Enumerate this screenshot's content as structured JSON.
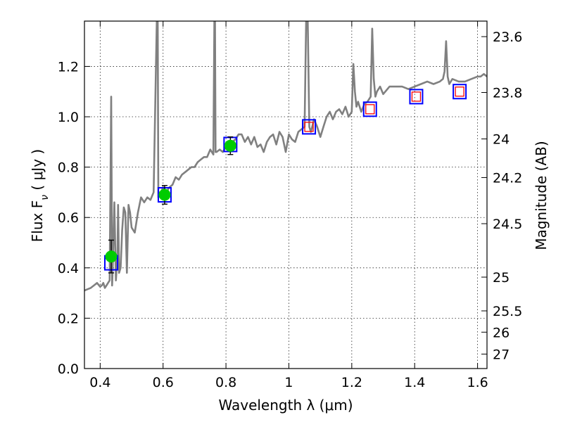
{
  "chart_data": {
    "type": "line",
    "xlabel": "Wavelength  λ (μm)",
    "ylabel": "Flux  F",
    "ylabel_sub": "ν",
    "ylabel_unit": " ( μJy )",
    "y2label": "Magnitude (AB)",
    "xlim": [
      0.35,
      1.63
    ],
    "ylim": [
      0.0,
      1.38
    ],
    "grid": true,
    "x_ticks": [
      {
        "value": 0.4,
        "label": "0.4"
      },
      {
        "value": 0.6,
        "label": "0.6"
      },
      {
        "value": 0.8,
        "label": "0.8"
      },
      {
        "value": 1.0,
        "label": "1"
      },
      {
        "value": 1.2,
        "label": "1.2"
      },
      {
        "value": 1.4,
        "label": "1.4"
      },
      {
        "value": 1.6,
        "label": "1.6"
      }
    ],
    "y_ticks": [
      {
        "value": 0.0,
        "label": "0.0"
      },
      {
        "value": 0.2,
        "label": "0.2"
      },
      {
        "value": 0.4,
        "label": "0.4"
      },
      {
        "value": 0.6,
        "label": "0.6"
      },
      {
        "value": 0.8,
        "label": "0.8"
      },
      {
        "value": 1.0,
        "label": "1.0"
      },
      {
        "value": 1.2,
        "label": "1.2"
      }
    ],
    "y2_ticks": [
      {
        "flux": 1.3183,
        "label": "23.6"
      },
      {
        "flux": 1.0965,
        "label": "23.8"
      },
      {
        "flux": 0.912,
        "label": "24"
      },
      {
        "flux": 0.7586,
        "label": "24.2"
      },
      {
        "flux": 0.5754,
        "label": "24.5"
      },
      {
        "flux": 0.3631,
        "label": "25"
      },
      {
        "flux": 0.2291,
        "label": "25.5"
      },
      {
        "flux": 0.1445,
        "label": "26"
      },
      {
        "flux": 0.0575,
        "label": "27"
      }
    ],
    "series": [
      {
        "kind": "model-spectrum",
        "color": "#808080",
        "x": [
          0.35,
          0.37,
          0.38,
          0.39,
          0.4,
          0.405,
          0.41,
          0.415,
          0.42,
          0.425,
          0.43,
          0.435,
          0.437,
          0.438,
          0.44,
          0.442,
          0.445,
          0.45,
          0.455,
          0.457,
          0.46,
          0.465,
          0.47,
          0.475,
          0.48,
          0.485,
          0.49,
          0.495,
          0.5,
          0.51,
          0.52,
          0.53,
          0.54,
          0.55,
          0.56,
          0.57,
          0.58,
          0.583,
          0.585,
          0.587,
          0.59,
          0.6,
          0.61,
          0.62,
          0.63,
          0.64,
          0.65,
          0.66,
          0.67,
          0.68,
          0.69,
          0.7,
          0.71,
          0.72,
          0.73,
          0.74,
          0.75,
          0.76,
          0.763,
          0.765,
          0.767,
          0.77,
          0.78,
          0.79,
          0.8,
          0.81,
          0.82,
          0.83,
          0.84,
          0.85,
          0.86,
          0.87,
          0.88,
          0.89,
          0.9,
          0.91,
          0.92,
          0.93,
          0.94,
          0.95,
          0.96,
          0.97,
          0.98,
          0.99,
          1.0,
          1.01,
          1.02,
          1.03,
          1.04,
          1.05,
          1.055,
          1.06,
          1.065,
          1.07,
          1.08,
          1.09,
          1.1,
          1.11,
          1.12,
          1.13,
          1.14,
          1.15,
          1.16,
          1.17,
          1.18,
          1.19,
          1.2,
          1.205,
          1.21,
          1.215,
          1.22,
          1.23,
          1.24,
          1.25,
          1.26,
          1.265,
          1.27,
          1.275,
          1.28,
          1.29,
          1.3,
          1.32,
          1.34,
          1.36,
          1.38,
          1.4,
          1.42,
          1.44,
          1.46,
          1.48,
          1.49,
          1.495,
          1.5,
          1.505,
          1.51,
          1.52,
          1.54,
          1.56,
          1.58,
          1.6,
          1.61,
          1.62,
          1.63
        ],
        "y": [
          0.31,
          0.32,
          0.33,
          0.34,
          0.325,
          0.33,
          0.34,
          0.32,
          0.33,
          0.34,
          0.35,
          1.08,
          0.6,
          0.33,
          0.4,
          0.5,
          0.66,
          0.35,
          0.45,
          0.65,
          0.38,
          0.4,
          0.55,
          0.64,
          0.62,
          0.38,
          0.65,
          0.62,
          0.56,
          0.54,
          0.62,
          0.68,
          0.66,
          0.68,
          0.67,
          0.7,
          1.38,
          1.38,
          0.68,
          0.7,
          0.69,
          0.72,
          0.7,
          0.72,
          0.73,
          0.76,
          0.75,
          0.77,
          0.78,
          0.79,
          0.8,
          0.8,
          0.82,
          0.83,
          0.84,
          0.84,
          0.87,
          0.85,
          1.38,
          1.38,
          0.86,
          0.86,
          0.87,
          0.86,
          0.88,
          0.88,
          0.9,
          0.91,
          0.93,
          0.93,
          0.9,
          0.92,
          0.89,
          0.92,
          0.88,
          0.89,
          0.86,
          0.9,
          0.92,
          0.93,
          0.89,
          0.94,
          0.92,
          0.86,
          0.93,
          0.91,
          0.9,
          0.94,
          0.95,
          0.96,
          1.38,
          1.38,
          0.96,
          0.94,
          0.99,
          0.96,
          0.92,
          0.96,
          1.0,
          1.02,
          0.99,
          1.02,
          1.03,
          1.01,
          1.04,
          1.0,
          1.02,
          1.21,
          1.1,
          1.04,
          1.06,
          1.02,
          1.05,
          1.06,
          1.08,
          1.35,
          1.15,
          1.08,
          1.1,
          1.12,
          1.09,
          1.12,
          1.12,
          1.12,
          1.11,
          1.12,
          1.13,
          1.14,
          1.13,
          1.14,
          1.15,
          1.18,
          1.3,
          1.16,
          1.13,
          1.15,
          1.14,
          1.14,
          1.15,
          1.16,
          1.16,
          1.17,
          1.16
        ]
      },
      {
        "kind": "model-flux-boxes",
        "outer_color": "#0000ff",
        "inner_color": "#ff0000",
        "points": [
          {
            "x": 0.435,
            "y": 0.42,
            "inner": false
          },
          {
            "x": 0.605,
            "y": 0.69,
            "inner": false
          },
          {
            "x": 0.814,
            "y": 0.89,
            "inner": false
          },
          {
            "x": 1.064,
            "y": 0.96,
            "inner": true
          },
          {
            "x": 1.258,
            "y": 1.03,
            "inner": true
          },
          {
            "x": 1.405,
            "y": 1.08,
            "inner": true
          },
          {
            "x": 1.543,
            "y": 1.1,
            "inner": true
          }
        ]
      },
      {
        "kind": "observed-flux",
        "color": "#00cc00",
        "points": [
          {
            "x": 0.435,
            "y": 0.445,
            "err": 0.065
          },
          {
            "x": 0.605,
            "y": 0.69,
            "err": 0.037
          },
          {
            "x": 0.814,
            "y": 0.885,
            "err": 0.035
          }
        ]
      }
    ]
  }
}
